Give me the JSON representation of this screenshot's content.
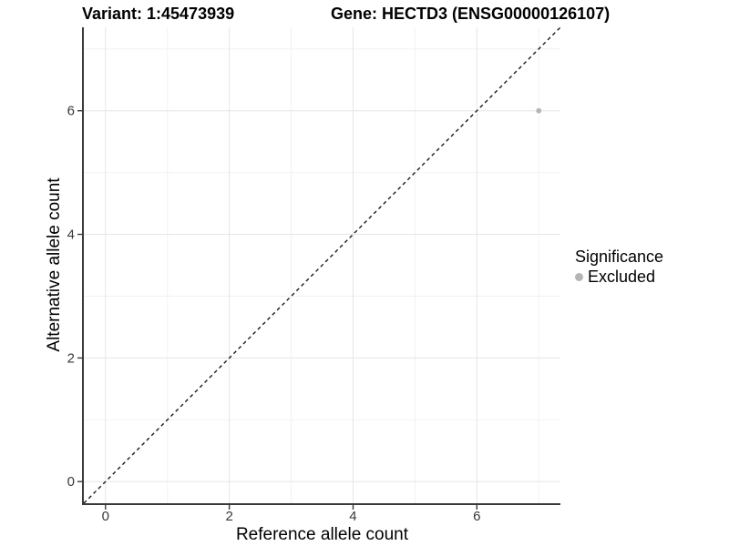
{
  "chart_data": {
    "type": "scatter",
    "title_left": "Variant: 1:45473939",
    "title_right": "Gene: HECTD3 (ENSG00000126107)",
    "xlabel": "Reference allele count",
    "ylabel": "Alternative allele count",
    "xlim": [
      -0.35,
      7.35
    ],
    "ylim": [
      -0.35,
      7.35
    ],
    "x_major_ticks": [
      0,
      2,
      4,
      6
    ],
    "y_major_ticks": [
      0,
      2,
      4,
      6
    ],
    "x_minor_ticks": [
      1,
      3,
      5,
      7
    ],
    "y_minor_ticks": [
      1,
      3,
      5,
      7
    ],
    "grid": "major+minor",
    "identity_line": {
      "from": [
        -0.35,
        -0.35
      ],
      "to": [
        7.35,
        7.35
      ],
      "style": "dashed",
      "color": "#1a1a1a"
    },
    "series": [
      {
        "name": "Excluded",
        "color": "#b5b5b5",
        "points": [
          {
            "x": 7,
            "y": 6
          }
        ]
      }
    ],
    "legend": {
      "title": "Significance",
      "position": "right",
      "items": [
        {
          "label": "Excluded",
          "color": "#b5b5b5"
        }
      ]
    }
  },
  "colors": {
    "background": "#ffffff",
    "grid_major": "#e6e6e6",
    "grid_minor": "#f2f2f2",
    "axis_line": "#3a3a3a",
    "tick_label": "#383838",
    "point": "#b5b5b5"
  }
}
